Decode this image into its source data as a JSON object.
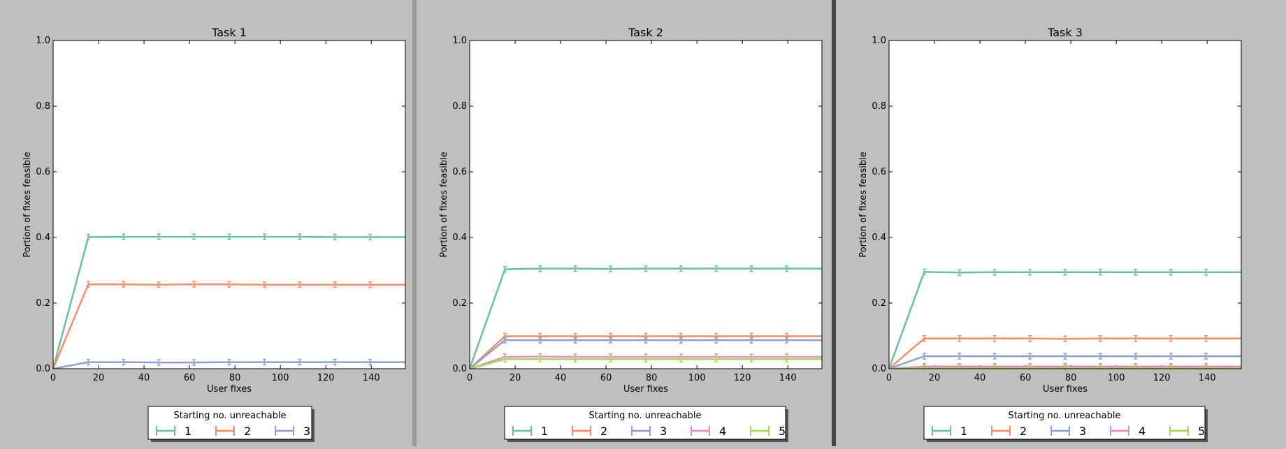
{
  "chart_data": [
    {
      "type": "line",
      "title": "Task 1",
      "xlabel": "User fixes",
      "ylabel": "Portion of fixes feasible",
      "xlim": [
        0,
        155
      ],
      "ylim": [
        0,
        1.0
      ],
      "xticks": [
        "0",
        "20",
        "40",
        "60",
        "80",
        "100",
        "120",
        "140"
      ],
      "yticks": [
        "0.0",
        "0.2",
        "0.4",
        "0.6",
        "0.8",
        "1.0"
      ],
      "error_bars": true,
      "legend_title": "Starting no. unreachable",
      "legend_position": "bottom-center",
      "x": [
        0,
        15.5,
        31,
        46.5,
        62,
        77.5,
        93,
        108.5,
        124,
        139.5,
        155
      ],
      "series": [
        {
          "name": "1",
          "color": "#66c2a5",
          "values": [
            0,
            0.401,
            0.402,
            0.402,
            0.402,
            0.402,
            0.402,
            0.402,
            0.401,
            0.401,
            0.401
          ]
        },
        {
          "name": "2",
          "color": "#fc8d62",
          "values": [
            0,
            0.257,
            0.257,
            0.256,
            0.257,
            0.257,
            0.256,
            0.256,
            0.256,
            0.256,
            0.256
          ]
        },
        {
          "name": "3",
          "color": "#8da0cb",
          "values": [
            0,
            0.02,
            0.02,
            0.019,
            0.019,
            0.02,
            0.02,
            0.02,
            0.02,
            0.02,
            0.02
          ]
        }
      ]
    },
    {
      "type": "line",
      "title": "Task 2",
      "xlabel": "User fixes",
      "ylabel": "Portion of fixes feasible",
      "xlim": [
        0,
        155
      ],
      "ylim": [
        0,
        1.0
      ],
      "xticks": [
        "0",
        "20",
        "40",
        "60",
        "80",
        "100",
        "120",
        "140"
      ],
      "yticks": [
        "0.0",
        "0.2",
        "0.4",
        "0.6",
        "0.8",
        "1.0"
      ],
      "error_bars": true,
      "legend_title": "Starting no. unreachable",
      "legend_position": "bottom-center",
      "x": [
        0,
        15.5,
        31,
        46.5,
        62,
        77.5,
        93,
        108.5,
        124,
        139.5,
        155
      ],
      "series": [
        {
          "name": "1",
          "color": "#66c2a5",
          "values": [
            0,
            0.303,
            0.305,
            0.305,
            0.304,
            0.305,
            0.305,
            0.305,
            0.305,
            0.305,
            0.305
          ]
        },
        {
          "name": "2",
          "color": "#fc8d62",
          "values": [
            0,
            0.099,
            0.099,
            0.099,
            0.099,
            0.099,
            0.099,
            0.099,
            0.099,
            0.099,
            0.099
          ]
        },
        {
          "name": "3",
          "color": "#8da0cb",
          "values": [
            0,
            0.087,
            0.087,
            0.087,
            0.087,
            0.087,
            0.087,
            0.087,
            0.087,
            0.087,
            0.087
          ]
        },
        {
          "name": "4",
          "color": "#e78ac3",
          "values": [
            0,
            0.036,
            0.037,
            0.036,
            0.036,
            0.036,
            0.036,
            0.036,
            0.036,
            0.036,
            0.036
          ]
        },
        {
          "name": "5",
          "color": "#a6d854",
          "values": [
            0,
            0.029,
            0.029,
            0.029,
            0.029,
            0.029,
            0.029,
            0.029,
            0.029,
            0.029,
            0.029
          ]
        }
      ]
    },
    {
      "type": "line",
      "title": "Task 3",
      "xlabel": "User fixes",
      "ylabel": "Portion of fixes feasible",
      "xlim": [
        0,
        155
      ],
      "ylim": [
        0,
        1.0
      ],
      "xticks": [
        "0",
        "20",
        "40",
        "60",
        "80",
        "100",
        "120",
        "140"
      ],
      "yticks": [
        "0.0",
        "0.2",
        "0.4",
        "0.6",
        "0.8",
        "1.0"
      ],
      "error_bars": true,
      "legend_title": "Starting no. unreachable",
      "legend_position": "bottom-center",
      "x": [
        0,
        15.5,
        31,
        46.5,
        62,
        77.5,
        93,
        108.5,
        124,
        139.5,
        155
      ],
      "series": [
        {
          "name": "1",
          "color": "#66c2a5",
          "values": [
            0,
            0.295,
            0.293,
            0.294,
            0.294,
            0.294,
            0.294,
            0.294,
            0.294,
            0.294,
            0.294
          ]
        },
        {
          "name": "2",
          "color": "#fc8d62",
          "values": [
            0,
            0.092,
            0.092,
            0.092,
            0.092,
            0.091,
            0.092,
            0.092,
            0.092,
            0.092,
            0.092
          ]
        },
        {
          "name": "3",
          "color": "#8da0cb",
          "values": [
            0,
            0.038,
            0.038,
            0.038,
            0.038,
            0.038,
            0.038,
            0.038,
            0.038,
            0.038,
            0.038
          ]
        },
        {
          "name": "4",
          "color": "#e78ac3",
          "values": [
            0,
            0.007,
            0.007,
            0.007,
            0.007,
            0.007,
            0.007,
            0.007,
            0.007,
            0.007,
            0.007
          ]
        },
        {
          "name": "5",
          "color": "#a6d854",
          "values": [
            0,
            0.002,
            0.002,
            0.002,
            0.002,
            0.002,
            0.002,
            0.002,
            0.002,
            0.002,
            0.002
          ]
        }
      ]
    }
  ]
}
